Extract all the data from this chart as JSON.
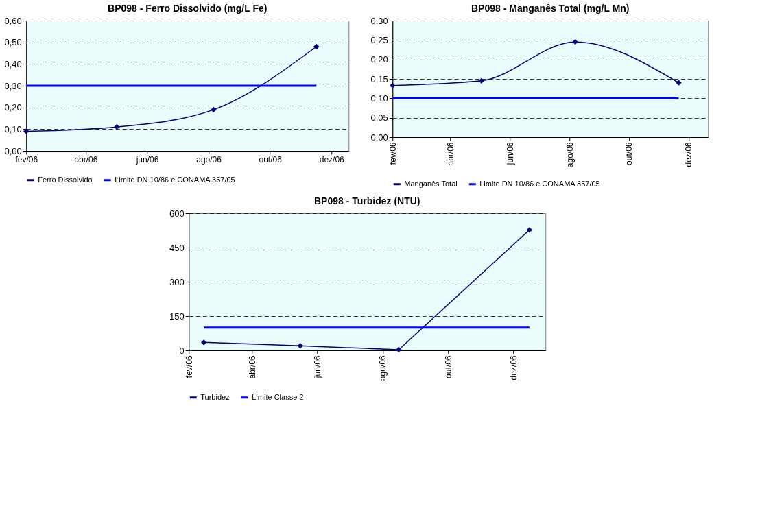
{
  "chart_data": [
    {
      "type": "line",
      "title": "BP098 - Ferro Dissolvido (mg/L Fe)",
      "series": [
        {
          "name": "Ferro Dissolvido",
          "color": "#000080",
          "marker": "diamond",
          "x": [
            "2006-02-01",
            "2006-05-02",
            "2006-08-06",
            "2006-11-16"
          ],
          "values": [
            0.09,
            0.11,
            0.19,
            0.48
          ]
        },
        {
          "name": "Limite DN 10/86 e CONAMA 357/05",
          "color": "#0000ff",
          "marker": "none",
          "x": [
            "2006-02-01",
            "2006-11-16"
          ],
          "values": [
            0.3,
            0.3
          ]
        }
      ],
      "xlim": [
        "2006-02-01",
        "2006-12-18"
      ],
      "xticks": [
        {
          "value": "2006-02-01",
          "label": "fev/06"
        },
        {
          "value": "2006-04-01",
          "label": "abr/06"
        },
        {
          "value": "2006-06-01",
          "label": "jun/06"
        },
        {
          "value": "2006-08-01",
          "label": "ago/06"
        },
        {
          "value": "2006-10-01",
          "label": "out/06"
        },
        {
          "value": "2006-12-01",
          "label": "dez/06"
        }
      ],
      "ylim": [
        0,
        0.6
      ],
      "yticks": [
        {
          "value": 0,
          "label": "0,00"
        },
        {
          "value": 0.1,
          "label": "0,10"
        },
        {
          "value": 0.2,
          "label": "0,20"
        },
        {
          "value": 0.3,
          "label": "0,30"
        },
        {
          "value": 0.4,
          "label": "0,40"
        },
        {
          "value": 0.5,
          "label": "0,50"
        },
        {
          "value": 0.6,
          "label": "0,60"
        }
      ],
      "grid": "y",
      "legend": "bottom"
    },
    {
      "type": "line",
      "title": "BP098 - Manganês Total (mg/L Mn)",
      "series": [
        {
          "name": "Manganês Total",
          "color": "#000080",
          "marker": "diamond",
          "x": [
            "2006-02-01",
            "2006-05-03",
            "2006-08-07",
            "2006-11-21"
          ],
          "values": [
            0.133,
            0.145,
            0.245,
            0.14
          ]
        },
        {
          "name": "Limite DN 10/86 e CONAMA 357/05",
          "color": "#0000ff",
          "marker": "none",
          "x": [
            "2006-02-01",
            "2006-11-21"
          ],
          "values": [
            0.1,
            0.1
          ]
        }
      ],
      "xlim": [
        "2006-02-01",
        "2006-12-21"
      ],
      "xticks": [
        {
          "value": "2006-02-01",
          "label": "fev/06"
        },
        {
          "value": "2006-04-01",
          "label": "abr/06"
        },
        {
          "value": "2006-06-01",
          "label": "jun/06"
        },
        {
          "value": "2006-08-01",
          "label": "ago/06"
        },
        {
          "value": "2006-10-01",
          "label": "out/06"
        },
        {
          "value": "2006-12-01",
          "label": "dez/06"
        }
      ],
      "ylim": [
        0,
        0.3
      ],
      "yticks": [
        {
          "value": 0,
          "label": "0,00"
        },
        {
          "value": 0.05,
          "label": "0,05"
        },
        {
          "value": 0.1,
          "label": "0,10"
        },
        {
          "value": 0.15,
          "label": "0,15"
        },
        {
          "value": 0.2,
          "label": "0,20"
        },
        {
          "value": 0.25,
          "label": "0,25"
        },
        {
          "value": 0.3,
          "label": "0,30"
        }
      ],
      "grid": "y",
      "legend": "bottom"
    },
    {
      "type": "line",
      "title": "BP098 - Turbidez (NTU)",
      "series": [
        {
          "name": "Turbidez",
          "color": "#000080",
          "marker": "diamond",
          "x": [
            "2006-02-15",
            "2006-05-16",
            "2006-08-16",
            "2006-12-16"
          ],
          "values": [
            35,
            20,
            3,
            527
          ]
        },
        {
          "name": "Limite Classe 2",
          "color": "#0000ff",
          "marker": "none",
          "x": [
            "2006-02-15",
            "2006-12-16"
          ],
          "values": [
            100,
            100
          ]
        }
      ],
      "xlim": [
        "2006-02-01",
        "2006-12-31"
      ],
      "xticks": [
        {
          "value": "2006-02-01",
          "label": "fev/06"
        },
        {
          "value": "2006-04-01",
          "label": "abr/06"
        },
        {
          "value": "2006-06-01",
          "label": "jun/06"
        },
        {
          "value": "2006-08-01",
          "label": "ago/06"
        },
        {
          "value": "2006-10-01",
          "label": "out/06"
        },
        {
          "value": "2006-12-01",
          "label": "dez/06"
        }
      ],
      "ylim": [
        0,
        600
      ],
      "yticks": [
        0,
        150,
        300,
        450,
        600
      ],
      "grid": "y",
      "legend": "bottom"
    }
  ]
}
